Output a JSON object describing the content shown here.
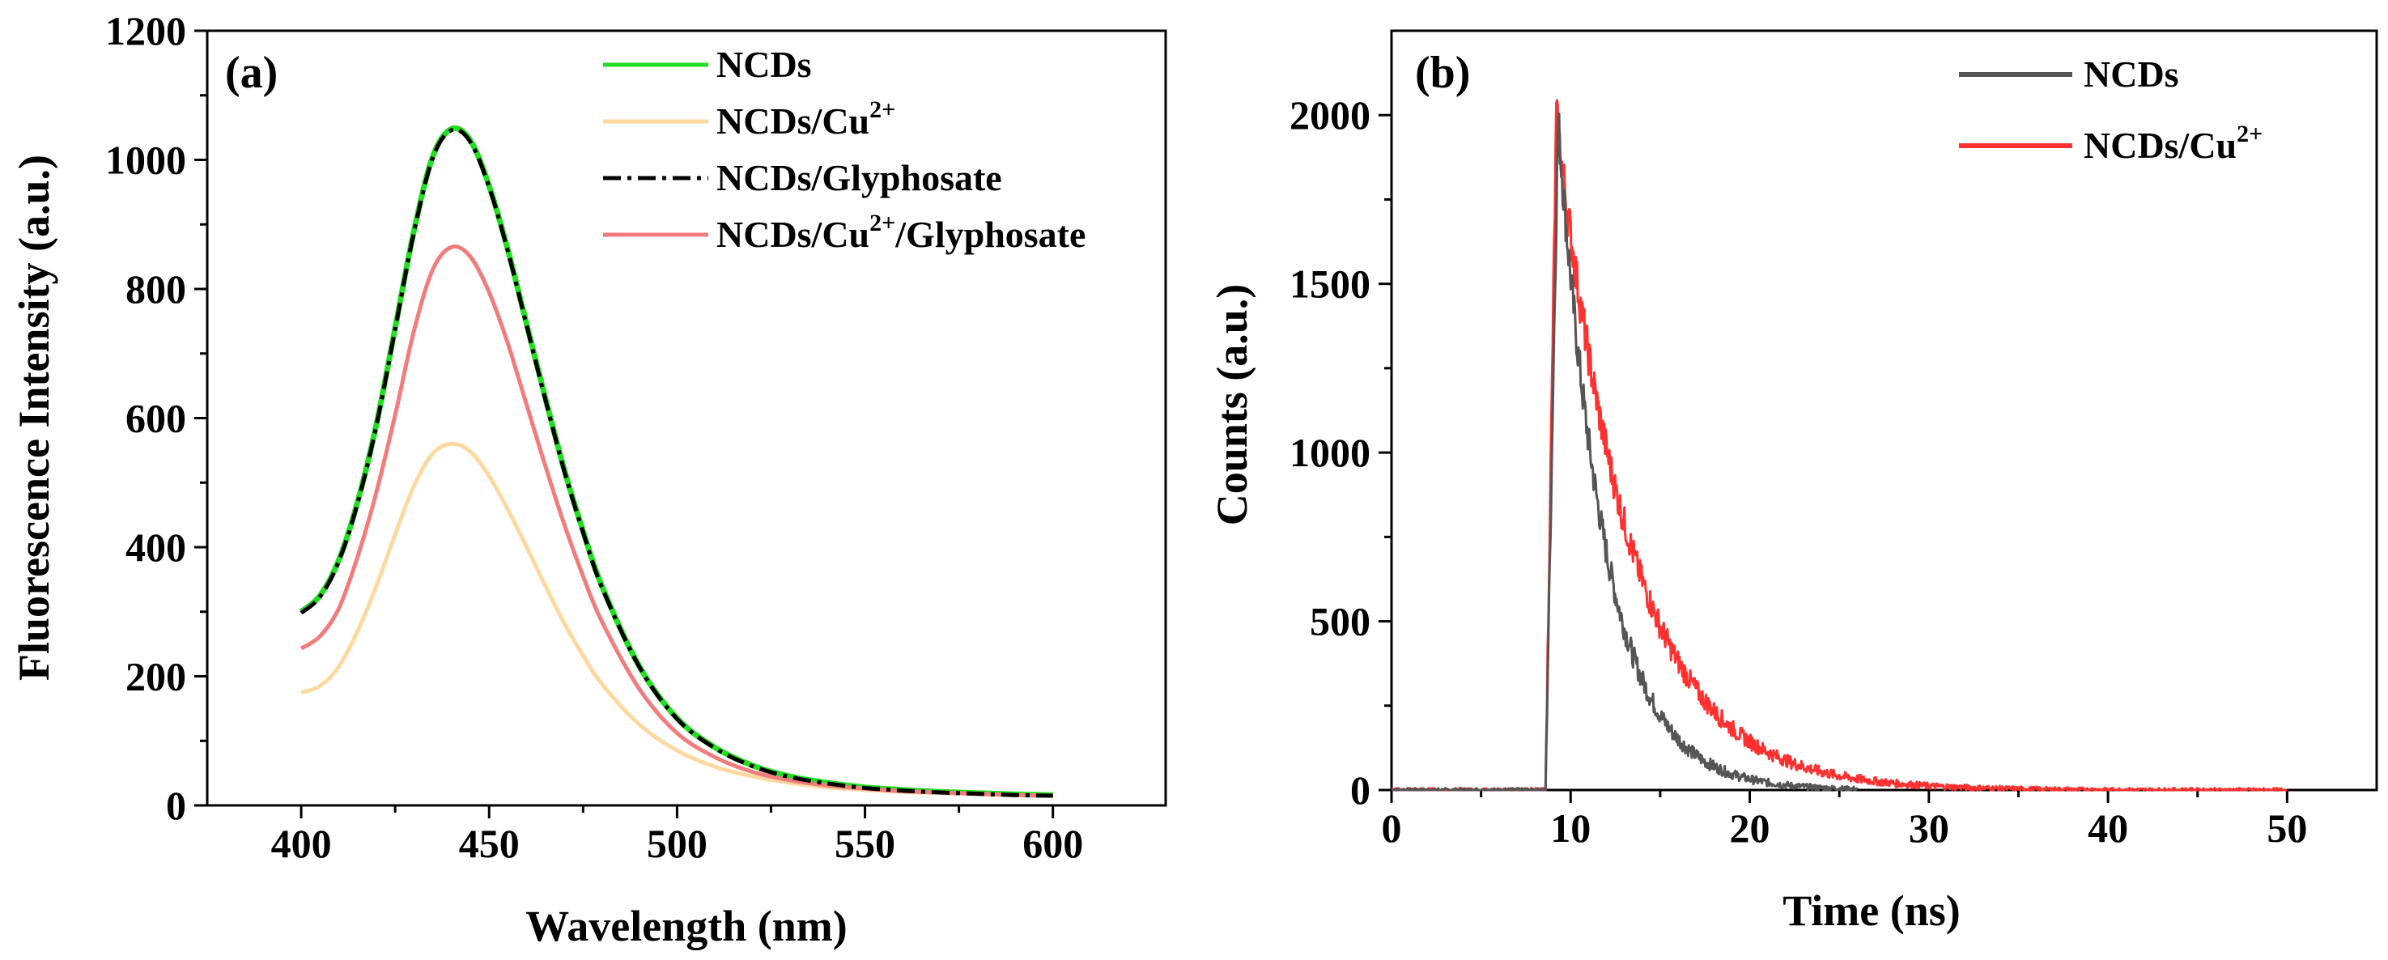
{
  "chart_data": [
    {
      "panel": "(a)",
      "type": "line",
      "xlabel": "Wavelength (nm)",
      "ylabel": "Fluorescence Intensity (a.u.)",
      "xlim": [
        375,
        630
      ],
      "ylim": [
        0,
        1200
      ],
      "xticks": [
        400,
        450,
        500,
        550,
        600
      ],
      "yticks": [
        0,
        200,
        400,
        600,
        800,
        1000,
        1200
      ],
      "grid": false,
      "legend_position": "top-right",
      "series": [
        {
          "name": "NCDs",
          "color": "#22dd22",
          "style": "solid",
          "x": [
            400,
            405,
            410,
            415,
            420,
            425,
            430,
            435,
            440,
            445,
            450,
            455,
            460,
            465,
            470,
            475,
            480,
            490,
            500,
            510,
            520,
            530,
            540,
            550,
            560,
            570,
            580,
            590,
            600
          ],
          "y": [
            300,
            325,
            380,
            470,
            590,
            740,
            890,
            1005,
            1048,
            1030,
            960,
            860,
            745,
            630,
            520,
            425,
            340,
            215,
            135,
            90,
            62,
            45,
            35,
            28,
            24,
            21,
            19,
            17,
            16
          ]
        },
        {
          "name": "NCDs/Cu2+",
          "label_base": "NCDs/Cu",
          "label_sup": "2+",
          "label_tail": "",
          "color": "#fdd9a0",
          "style": "solid",
          "x": [
            400,
            405,
            410,
            415,
            420,
            425,
            430,
            435,
            440,
            445,
            450,
            455,
            460,
            465,
            470,
            475,
            480,
            490,
            500,
            510,
            520,
            530,
            540,
            550,
            560,
            570,
            580,
            590,
            600
          ],
          "y": [
            175,
            185,
            215,
            270,
            340,
            420,
            495,
            545,
            560,
            548,
            510,
            458,
            400,
            340,
            282,
            232,
            188,
            125,
            85,
            60,
            45,
            35,
            28,
            24,
            21,
            19,
            17,
            16,
            15
          ]
        },
        {
          "name": "NCDs/Glyphosate",
          "color": "#000000",
          "style": "dashdot",
          "x": [
            400,
            405,
            410,
            415,
            420,
            425,
            430,
            435,
            440,
            445,
            450,
            455,
            460,
            465,
            470,
            475,
            480,
            490,
            500,
            510,
            520,
            530,
            540,
            550,
            560,
            570,
            580,
            590,
            600
          ],
          "y": [
            298,
            323,
            378,
            468,
            588,
            738,
            888,
            1003,
            1046,
            1028,
            958,
            858,
            743,
            628,
            518,
            423,
            338,
            214,
            134,
            89,
            61,
            44,
            34,
            27,
            23,
            20,
            18,
            16,
            15
          ]
        },
        {
          "name": "NCDs/Cu2+/Glyphosate",
          "label_base": "NCDs/Cu",
          "label_sup": "2+",
          "label_tail": "/Glyphosate",
          "color": "#f27c7c",
          "style": "solid",
          "x": [
            400,
            405,
            410,
            415,
            420,
            425,
            430,
            435,
            440,
            445,
            450,
            455,
            460,
            465,
            470,
            475,
            480,
            490,
            500,
            510,
            520,
            530,
            540,
            550,
            560,
            570,
            580,
            590,
            600
          ],
          "y": [
            243,
            262,
            305,
            385,
            485,
            605,
            735,
            830,
            865,
            850,
            795,
            715,
            620,
            525,
            435,
            355,
            285,
            180,
            112,
            75,
            52,
            39,
            31,
            26,
            22,
            20,
            18,
            16,
            15
          ]
        }
      ]
    },
    {
      "panel": "(b)",
      "type": "line",
      "xlabel": "Time (ns)",
      "ylabel": "Counts (a.u.)",
      "xlim": [
        0,
        55
      ],
      "ylim": [
        0,
        2250
      ],
      "xticks": [
        0,
        10,
        20,
        30,
        40,
        50
      ],
      "yticks": [
        0,
        500,
        1000,
        1500,
        2000
      ],
      "grid": false,
      "legend_position": "top-right",
      "series": [
        {
          "name": "NCDs",
          "color": "#555555",
          "style": "noisy",
          "onset": 8.6,
          "peak_time": 9.3,
          "peak": 1990,
          "decay_ns": 2.6,
          "end": 26
        },
        {
          "name": "NCDs/Cu2+",
          "label_base": "NCDs/Cu",
          "label_sup": "2+",
          "label_tail": "",
          "color": "#ff3030",
          "style": "noisy",
          "onset": 8.6,
          "peak_time": 9.2,
          "peak": 2000,
          "decay_ns": 4.1,
          "end": 50
        }
      ]
    }
  ]
}
